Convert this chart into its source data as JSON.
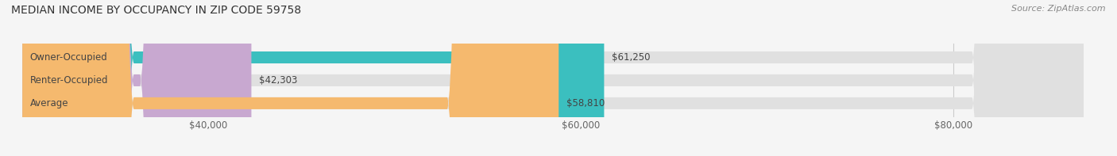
{
  "title": "MEDIAN INCOME BY OCCUPANCY IN ZIP CODE 59758",
  "source": "Source: ZipAtlas.com",
  "categories": [
    "Owner-Occupied",
    "Renter-Occupied",
    "Average"
  ],
  "values": [
    61250,
    42303,
    58810
  ],
  "bar_colors": [
    "#3bbfbf",
    "#c8a8d0",
    "#f5b96e"
  ],
  "bar_bg_color": "#e0e0e0",
  "value_labels": [
    "$61,250",
    "$42,303",
    "$58,810"
  ],
  "xlim": [
    30000,
    87000
  ],
  "xticks": [
    40000,
    60000,
    80000
  ],
  "xtick_labels": [
    "$40,000",
    "$60,000",
    "$80,000"
  ],
  "title_fontsize": 10,
  "source_fontsize": 8,
  "label_fontsize": 8.5,
  "bar_height": 0.52,
  "background_color": "#f5f5f5"
}
